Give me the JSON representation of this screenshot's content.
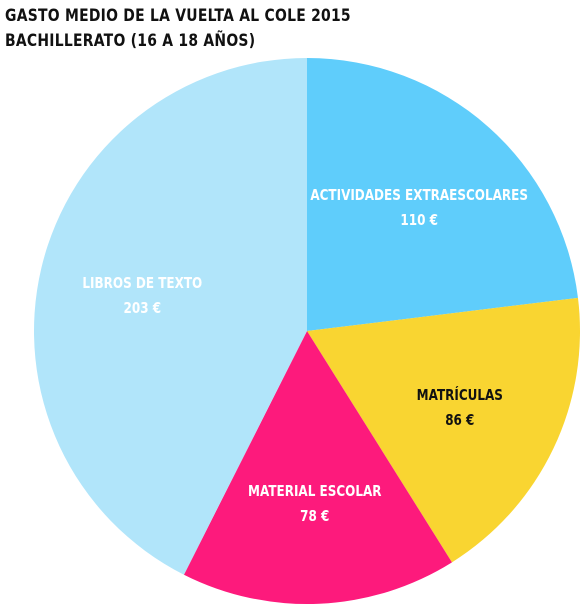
{
  "chart_data": {
    "type": "pie",
    "title": "GASTO MEDIO DE LA VUELTA AL COLE 2015",
    "subtitle": "BACHILLERATO (16 A 18 AÑOS)",
    "slices": [
      {
        "label": "ACTIVIDADES EXTRAESCOLARES",
        "value": 110,
        "value_label": "110 €",
        "color": "#5fcdfb",
        "text_color": "#ffffff"
      },
      {
        "label": "MATRÍCULAS",
        "value": 86,
        "value_label": "86 €",
        "color": "#f9d531",
        "text_color": "#111111"
      },
      {
        "label": "MATERIAL ESCOLAR",
        "value": 78,
        "value_label": "78 €",
        "color": "#fd1a7c",
        "text_color": "#ffffff"
      },
      {
        "label": "LIBROS DE TEXTO",
        "value": 203,
        "value_label": "203 €",
        "color": "#b1e5fa",
        "text_color": "#ffffff"
      }
    ],
    "start": "12 o'clock",
    "direction": "clockwise",
    "legend": "none"
  }
}
